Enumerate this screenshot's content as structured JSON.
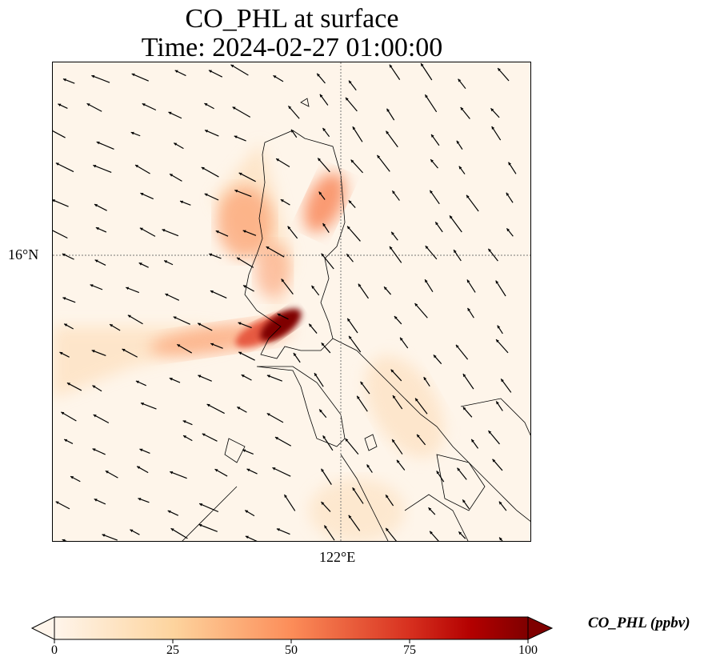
{
  "title": {
    "line1": "CO_PHL at surface",
    "line2": "Time: 2024-02-27 01:00:00"
  },
  "map": {
    "lat_label": "16°N",
    "lon_label": "122°E",
    "colormap_colors": [
      "#fff5eb",
      "#fdd49e",
      "#fc8d59",
      "#d7301f",
      "#b30000",
      "#7f0000"
    ]
  },
  "colorbar": {
    "label": "CO_PHL (ppbv)",
    "ticks": [
      "0",
      "25",
      "50",
      "75",
      "100"
    ],
    "range": [
      0,
      100
    ],
    "extend": "both"
  }
}
